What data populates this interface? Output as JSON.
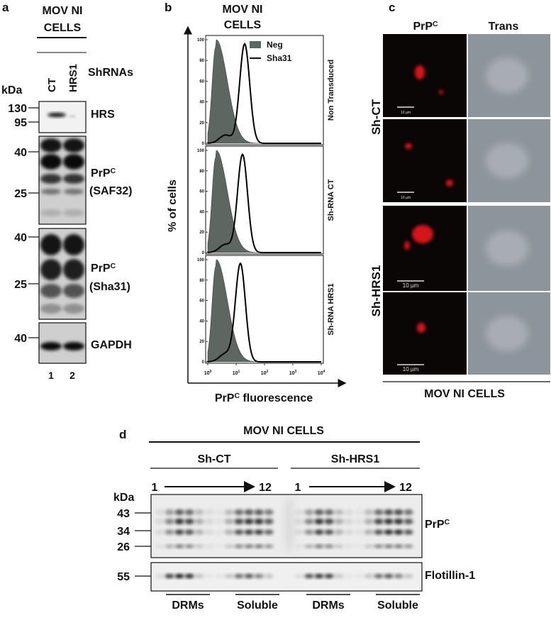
{
  "panel_a": {
    "letter": "a",
    "title_lines": [
      "MOV NI",
      "CELLS"
    ],
    "shrnas": "ShRNAs",
    "lanes": [
      "CT",
      "HRS1"
    ],
    "kda": "kDa",
    "blots": [
      {
        "markers": [
          130,
          95
        ],
        "label": "HRS"
      },
      {
        "markers": [
          40,
          25
        ],
        "label": "PrP",
        "sup": "C",
        "sub_label": "(SAF32)"
      },
      {
        "markers": [
          40,
          25
        ],
        "label": "PrP",
        "sup": "C",
        "sub_label": "(Sha31)"
      },
      {
        "markers": [
          40
        ],
        "label": "GAPDH"
      }
    ],
    "lane_numbers": [
      "1",
      "2"
    ]
  },
  "panel_b": {
    "letter": "b",
    "title_lines": [
      "MOV NI",
      "CELLS"
    ],
    "legend": [
      "Neg",
      "Sha31"
    ],
    "y_label": "% of cells",
    "x_label": {
      "label": "PrP",
      "sup": "C",
      "rest": " fluorescence"
    },
    "plots": [
      {
        "label": "Non Transduced",
        "yticks": [
          0,
          20,
          40,
          60,
          80,
          100
        ]
      },
      {
        "label": "Sh-RNA CT",
        "yticks": [
          0,
          20,
          40,
          60,
          80,
          100
        ]
      },
      {
        "label": "Sh-RNA HRS1",
        "yticks": [
          0,
          20,
          40,
          60,
          80,
          100
        ]
      }
    ],
    "xticks": [
      {
        "base": "10",
        "exp": "0"
      },
      {
        "base": "10",
        "exp": "1"
      },
      {
        "base": "10",
        "exp": "2"
      },
      {
        "base": "10",
        "exp": "3"
      },
      {
        "base": "10",
        "exp": "4"
      }
    ]
  },
  "panel_c": {
    "letter": "c",
    "columns": [
      {
        "label": "PrP",
        "sup": "C"
      },
      {
        "label": "Trans"
      }
    ],
    "groups": [
      "Sh-CT",
      "Sh-HRS1"
    ],
    "scale_bars": [
      "10 µm",
      "10 µm",
      "10 µm",
      "10 µm"
    ],
    "footer": "MOV NI CELLS"
  },
  "panel_d": {
    "letter": "d",
    "title": "MOV NI CELLS",
    "groups": [
      {
        "name": "Sh-CT",
        "start": "1",
        "end": "12",
        "fractions": [
          "DRMs",
          "Soluble"
        ]
      },
      {
        "name": "Sh-HRS1",
        "start": "1",
        "end": "12",
        "fractions": [
          "DRMs",
          "Soluble"
        ]
      }
    ],
    "kda": "kDa",
    "blots": [
      {
        "markers": [
          43,
          34,
          26
        ],
        "label": "PrP",
        "sup": "C"
      },
      {
        "markers": [
          55
        ],
        "label": "Flotillin-1"
      }
    ]
  }
}
